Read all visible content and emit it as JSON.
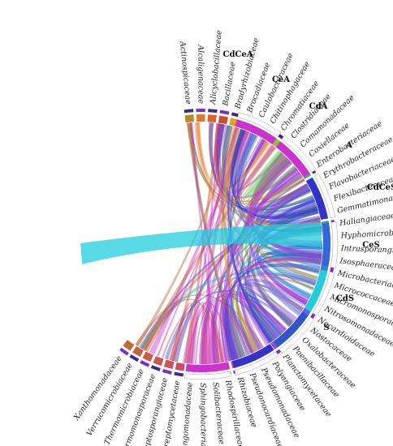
{
  "chart_data": {
    "type": "chord",
    "samples": [
      "CdCeA",
      "CeA",
      "CdA",
      "A",
      "CdCeS",
      "CeS",
      "CdS",
      "S"
    ],
    "sample_colors": [
      "#cc33cc",
      "#cc33cc",
      "#3333cc",
      "#3366dd",
      "#22ccdd",
      "#3355cc",
      "#3333cc",
      "#cc33cc"
    ],
    "families": [
      "Actinospicaceae",
      "Alcaligenaceae",
      "Alicyclobacillaceae",
      "Bacillaceae",
      "Bradyrhizobiaceae",
      "Brocadiaceae",
      "Caulobacteraceae",
      "Chitinophagaceae",
      "Chromatiaceae",
      "Clostridiaceae",
      "Comamonadaceae",
      "Coxiellaceae",
      "Enterobacteriaceae",
      "Erythrobacteraceae",
      "Flavobacteriaceae",
      "Flexibacteraceae",
      "Gemmatimonadaceae",
      "Haliangiaceae",
      "Hyphomicrobiaceae",
      "Intrasporangiaceae",
      "Isosphaeraceae",
      "Microbacteriaceae",
      "Micrococcaceae",
      "Micromonosporaceae",
      "Nitrosomonadaceae",
      "Nocardioidaceae",
      "Nostocaceae",
      "Oxalobacteraceae",
      "Paenibacillaceae",
      "Planctomycetaceae",
      "Polyangiaceae",
      "Pseudomonadaceae",
      "Pseudonocardiaceae",
      "Rhizobiaceae",
      "Rhodospirillaceae",
      "Solibacteraceae",
      "Sphingobacteriaceae",
      "Sphingomonadaceae",
      "Streptomycetaceae",
      "Streptosporangiaceae",
      "Thermomonosporaceae",
      "Thermomicrobiaceae",
      "Verrucomicrobiaceae",
      "Xanthomonadaceae"
    ],
    "family_colors": [
      "#b48a2c",
      "#e07a2a",
      "#d9652e",
      "#c8502a",
      "#e3a02b",
      "#e8b830",
      "#c9c230",
      "#a8c63a",
      "#8cc43c",
      "#74c043",
      "#5cbd48",
      "#4fb94e",
      "#46b35a",
      "#3fae66",
      "#3ca873",
      "#3aa380",
      "#389e8e",
      "#37999c",
      "#3894aa",
      "#3a8eb8",
      "#3d87c4",
      "#4280cf",
      "#4879d7",
      "#4f72dd",
      "#5a6be0",
      "#6663e1",
      "#735be0",
      "#8055dd",
      "#8d4fd8",
      "#9a4ad1",
      "#a646c9",
      "#b143bf",
      "#ba41b4",
      "#c240a8",
      "#c8409b",
      "#cd418e",
      "#d04381",
      "#d24674",
      "#d24a67",
      "#d14f5b",
      "#ce5550",
      "#c95c46",
      "#c3643c",
      "#bb6c34"
    ],
    "sample_legend_ticks": [
      "0%",
      "20%",
      "40%",
      "60%",
      "80%",
      "100%"
    ],
    "count_ticks": [
      "0",
      "10,000",
      "20,000",
      "30,000",
      "40,000",
      "50,000",
      "60,000",
      "70,000",
      "80,000",
      "90,000",
      "100,000",
      "110,000",
      "120,000"
    ],
    "links_note": ""
  }
}
